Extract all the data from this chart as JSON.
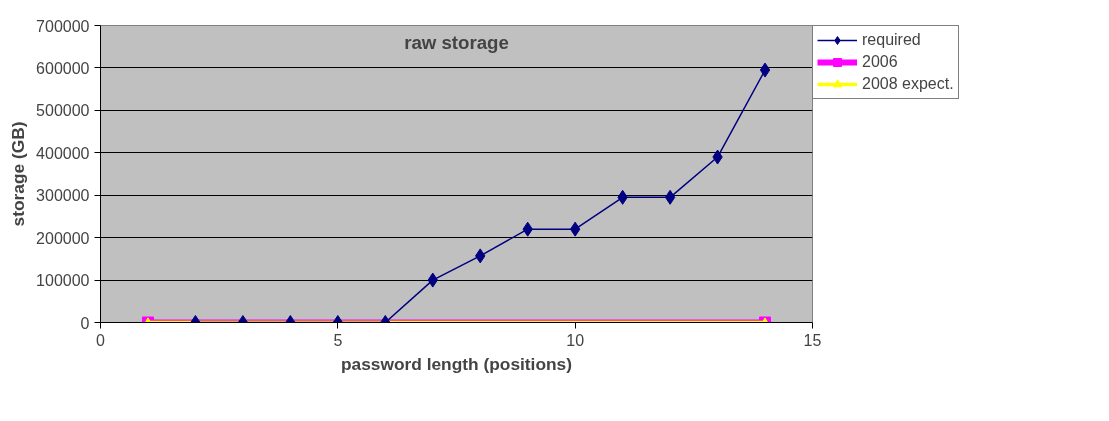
{
  "chart_data": {
    "type": "line",
    "title": "raw storage",
    "xlabel": "password length (positions)",
    "ylabel": "storage (GB)",
    "xlim": [
      0,
      15
    ],
    "xticks": [
      0,
      5,
      10,
      15
    ],
    "ylim": [
      0,
      700000
    ],
    "yticks": [
      0,
      100000,
      200000,
      300000,
      400000,
      500000,
      600000,
      700000
    ],
    "grid": "y",
    "legend": "top right",
    "line_style": "solid",
    "series": [
      {
        "name": "required",
        "color": "#000080",
        "marker": "diamond",
        "x": [
          2,
          3,
          4,
          5,
          6,
          7,
          8,
          9,
          10,
          11,
          12,
          13,
          14
        ],
        "values": [
          0,
          0,
          0,
          0,
          0,
          100000,
          157000,
          220000,
          220000,
          295000,
          295000,
          390000,
          595000
        ]
      },
      {
        "name": "2006",
        "color": "#ff00ff",
        "marker": "square",
        "x": [
          1,
          14
        ],
        "values": [
          0,
          0
        ]
      },
      {
        "name": "2008 expect.",
        "color": "#ffff00",
        "marker": "triangle",
        "x": [
          1,
          14
        ],
        "values": [
          0,
          0
        ]
      }
    ]
  }
}
